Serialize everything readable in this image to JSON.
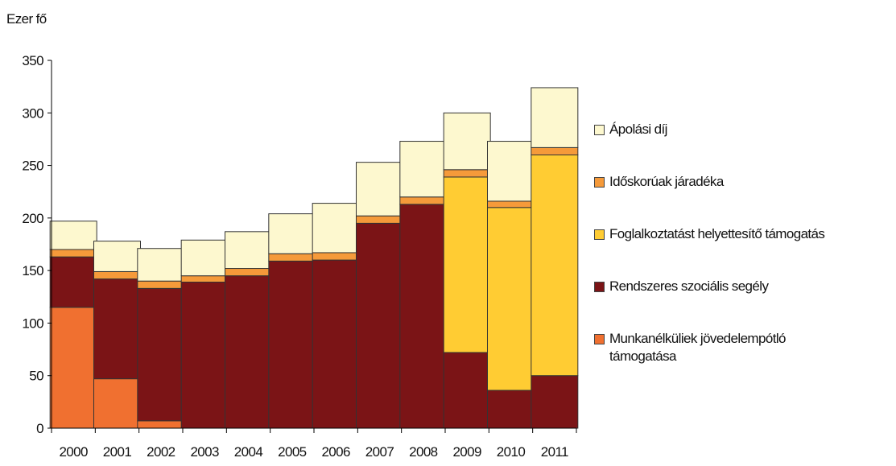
{
  "chart_data": {
    "type": "bar",
    "stacked": true,
    "ylabel": "Ezer fő",
    "ylim": [
      0,
      350
    ],
    "yticks": [
      0,
      50,
      100,
      150,
      200,
      250,
      300,
      350
    ],
    "categories": [
      "2000",
      "2001",
      "2002",
      "2003",
      "2004",
      "2005",
      "2006",
      "2007",
      "2008",
      "2009",
      "2010",
      "2011"
    ],
    "grid": false,
    "legend_position": "right",
    "series": [
      {
        "name": "Munkanélküliek jövedelempótló támogatása",
        "color": "#f07030",
        "values": [
          115,
          47,
          7,
          0,
          0,
          0,
          0,
          0,
          0,
          0,
          0,
          0
        ]
      },
      {
        "name": "Rendszeres szociális segély",
        "color": "#7b1416",
        "values": [
          48,
          95,
          126,
          139,
          145,
          159,
          160,
          195,
          213,
          72,
          36,
          50
        ]
      },
      {
        "name": "Foglalkoztatást helyettesítő támogatás",
        "color": "#ffcc33",
        "values": [
          0,
          0,
          0,
          0,
          0,
          0,
          0,
          0,
          0,
          167,
          174,
          210
        ]
      },
      {
        "name": "Időskorúak járadéka",
        "color": "#f59a3a",
        "values": [
          7,
          7,
          7,
          6,
          7,
          7,
          7,
          7,
          7,
          7,
          6,
          7
        ]
      },
      {
        "name": "Ápolási díj",
        "color": "#fdf8cf",
        "values": [
          27,
          29,
          31,
          34,
          35,
          38,
          47,
          51,
          53,
          54,
          57,
          57
        ]
      }
    ],
    "legend_order": [
      4,
      3,
      2,
      1,
      0
    ]
  }
}
